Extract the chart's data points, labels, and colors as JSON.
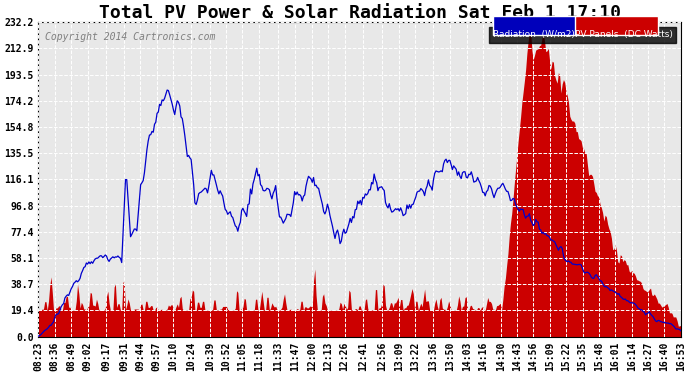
{
  "title": "Total PV Power & Solar Radiation Sat Feb 1 17:10",
  "copyright": "Copyright 2014 Cartronics.com",
  "legend_items": [
    "Radiation  (W/m2)",
    "PV Panels  (DC Watts)"
  ],
  "legend_bg_colors": [
    "#0000bb",
    "#cc0000"
  ],
  "legend_text_color": "white",
  "y_ticks": [
    0.0,
    19.4,
    38.7,
    58.1,
    77.4,
    96.8,
    116.1,
    135.5,
    154.8,
    174.2,
    193.5,
    212.9,
    232.2
  ],
  "y_max": 232.2,
  "y_min": 0.0,
  "bg_color": "#ffffff",
  "plot_bg_color": "#e8e8e8",
  "grid_color": "#ffffff",
  "line_color_pv": "#0000cc",
  "bar_color_radiation": "#cc0000",
  "title_fontsize": 13,
  "copyright_fontsize": 7,
  "tick_fontsize": 7,
  "n_points": 510
}
